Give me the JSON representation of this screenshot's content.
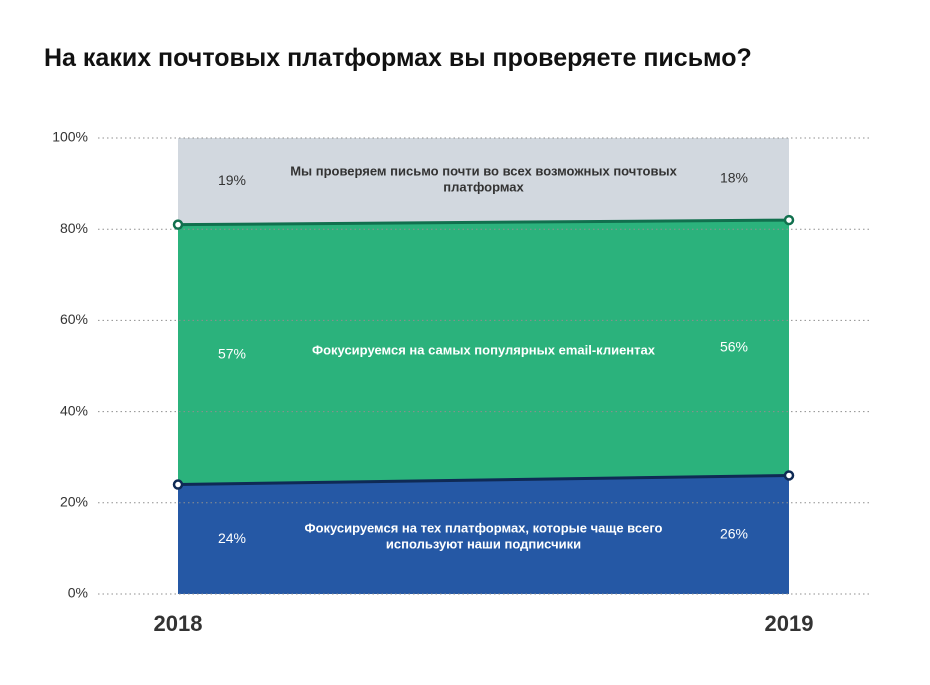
{
  "page": {
    "title": "На каких почтовых платформах вы проверяете письмо?"
  },
  "chart_data": {
    "type": "area",
    "stacked": true,
    "title": "На каких почтовых платформах вы проверяете письмо?",
    "x": [
      "2018",
      "2019"
    ],
    "ylim": [
      0,
      100
    ],
    "y_ticks": [
      "0%",
      "20%",
      "40%",
      "60%",
      "80%",
      "100%"
    ],
    "grid": true,
    "series": [
      {
        "name": "Фокусируемся на тех платформах, которые чаще всего используют наши подписчики",
        "values": [
          24,
          26
        ],
        "labels": [
          "24%",
          "26%"
        ],
        "color": "#2558a5",
        "line_color": "#0f2a55",
        "text_color": "#ffffff"
      },
      {
        "name": "Фокусируемся на самых популярных email-клиентах",
        "values": [
          57,
          56
        ],
        "labels": [
          "57%",
          "56%"
        ],
        "color": "#2bb27c",
        "line_color": "#11704e",
        "text_color": "#ffffff"
      },
      {
        "name": "Мы проверяем письмо почти во всех возможных почтовых платформах",
        "values": [
          19,
          18
        ],
        "labels": [
          "19%",
          "18%"
        ],
        "color": "#d2d8df",
        "line_color": null,
        "text_color": "#333333"
      }
    ]
  }
}
